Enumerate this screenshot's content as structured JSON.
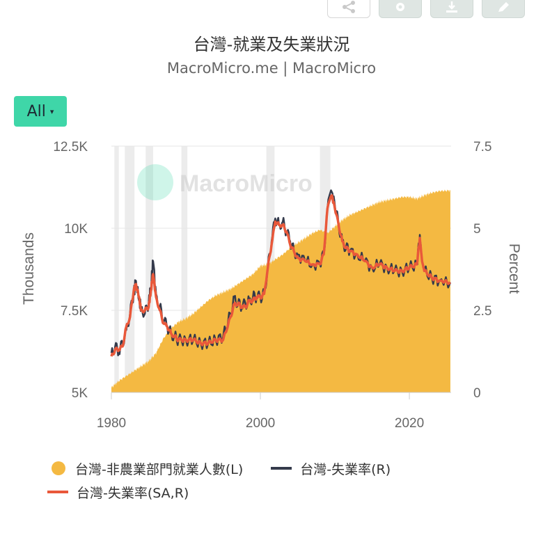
{
  "title": "台灣-就業及失業狀況",
  "subtitle": "MacroMicro.me | MacroMicro",
  "range_selector": {
    "label": "All",
    "caret": "▾"
  },
  "toolbar": {
    "icons": [
      "share-icon",
      "gear-icon",
      "download-icon",
      "edit-icon"
    ]
  },
  "watermark": "MacroMicro",
  "colors": {
    "employment": "#f4b942",
    "unemployment": "#343a4b",
    "unemployment_sa": "#e9583a",
    "recession": "#ececec",
    "accent": "#3fd6a8"
  },
  "chart_data": {
    "type": "area",
    "title": "台灣-就業及失業狀況",
    "left_axis": {
      "label": "Thousands",
      "range": [
        5000,
        12500
      ],
      "ticks": [
        5000,
        7500,
        10000,
        12500
      ],
      "tick_labels": [
        "5K",
        "7.5K",
        "10K",
        "12.5K"
      ]
    },
    "right_axis": {
      "label": "Percent",
      "range": [
        0,
        7.5
      ],
      "ticks": [
        0,
        2.5,
        5,
        7.5
      ],
      "tick_labels": [
        "0",
        "2.5",
        "5",
        "7.5"
      ]
    },
    "x_axis": {
      "range": [
        1980,
        2025.6
      ],
      "ticks": [
        1980,
        2000,
        2020
      ],
      "tick_labels": [
        "1980",
        "2000",
        "2020"
      ]
    },
    "recession_bands": [
      [
        1980.4,
        1981.0
      ],
      [
        1981.8,
        1983.1
      ],
      [
        1984.6,
        1985.6
      ],
      [
        1989.4,
        1990.2
      ],
      [
        2000.8,
        2001.9
      ],
      [
        2008.0,
        2009.4
      ]
    ],
    "series": [
      {
        "name": "台灣-非農業部門就業人數(L)",
        "axis": "left",
        "type": "area",
        "points": [
          [
            1980,
            5150
          ],
          [
            1981,
            5350
          ],
          [
            1982,
            5500
          ],
          [
            1983,
            5650
          ],
          [
            1984,
            5800
          ],
          [
            1985,
            5950
          ],
          [
            1986,
            6200
          ],
          [
            1987,
            6650
          ],
          [
            1988,
            6950
          ],
          [
            1989,
            7150
          ],
          [
            1990,
            7250
          ],
          [
            1991,
            7400
          ],
          [
            1992,
            7600
          ],
          [
            1993,
            7800
          ],
          [
            1994,
            7950
          ],
          [
            1995,
            8050
          ],
          [
            1996,
            8150
          ],
          [
            1997,
            8300
          ],
          [
            1998,
            8450
          ],
          [
            1999,
            8600
          ],
          [
            2000,
            8850
          ],
          [
            2001,
            8900
          ],
          [
            2002,
            9050
          ],
          [
            2003,
            9200
          ],
          [
            2004,
            9400
          ],
          [
            2005,
            9550
          ],
          [
            2006,
            9700
          ],
          [
            2007,
            9850
          ],
          [
            2008,
            9950
          ],
          [
            2009,
            9850
          ],
          [
            2010,
            10050
          ],
          [
            2011,
            10250
          ],
          [
            2012,
            10400
          ],
          [
            2013,
            10500
          ],
          [
            2014,
            10600
          ],
          [
            2015,
            10700
          ],
          [
            2016,
            10800
          ],
          [
            2017,
            10850
          ],
          [
            2018,
            10900
          ],
          [
            2019,
            10950
          ],
          [
            2020,
            10950
          ],
          [
            2021,
            10900
          ],
          [
            2022,
            11000
          ],
          [
            2023,
            11080
          ],
          [
            2024,
            11130
          ],
          [
            2025.5,
            11150
          ]
        ]
      },
      {
        "name": "台灣-失業率(R)",
        "axis": "right",
        "type": "line",
        "points": [
          [
            1980,
            1.2
          ],
          [
            1980.5,
            1.4
          ],
          [
            1981,
            1.2
          ],
          [
            1981.5,
            1.5
          ],
          [
            1982,
            1.9
          ],
          [
            1982.5,
            2.4
          ],
          [
            1983,
            3.0
          ],
          [
            1983.3,
            3.4
          ],
          [
            1983.7,
            2.8
          ],
          [
            1984,
            2.6
          ],
          [
            1984.5,
            2.4
          ],
          [
            1985,
            2.7
          ],
          [
            1985.3,
            3.2
          ],
          [
            1985.6,
            4.0
          ],
          [
            1986,
            3.0
          ],
          [
            1986.5,
            2.6
          ],
          [
            1987,
            2.2
          ],
          [
            1987.5,
            2.0
          ],
          [
            1988,
            1.8
          ],
          [
            1988.5,
            1.7
          ],
          [
            1989,
            1.6
          ],
          [
            1990,
            1.6
          ],
          [
            1991,
            1.6
          ],
          [
            1992,
            1.5
          ],
          [
            1993,
            1.5
          ],
          [
            1994,
            1.6
          ],
          [
            1995,
            1.7
          ],
          [
            1996,
            2.4
          ],
          [
            1996.5,
            2.9
          ],
          [
            1997,
            2.7
          ],
          [
            1997.5,
            2.6
          ],
          [
            1998,
            2.7
          ],
          [
            1998.5,
            2.8
          ],
          [
            1999,
            2.9
          ],
          [
            1999.5,
            2.9
          ],
          [
            2000,
            2.9
          ],
          [
            2000.5,
            3.0
          ],
          [
            2001,
            3.8
          ],
          [
            2001.5,
            4.6
          ],
          [
            2002,
            5.3
          ],
          [
            2002.5,
            5.1
          ],
          [
            2003,
            5.2
          ],
          [
            2003.5,
            4.9
          ],
          [
            2004,
            4.6
          ],
          [
            2004.5,
            4.3
          ],
          [
            2005,
            4.2
          ],
          [
            2006,
            4.0
          ],
          [
            2007,
            3.9
          ],
          [
            2008,
            3.9
          ],
          [
            2008.5,
            4.2
          ],
          [
            2009,
            5.6
          ],
          [
            2009.6,
            6.1
          ],
          [
            2010,
            5.7
          ],
          [
            2010.5,
            5.1
          ],
          [
            2011,
            4.6
          ],
          [
            2011.5,
            4.4
          ],
          [
            2012,
            4.3
          ],
          [
            2013,
            4.2
          ],
          [
            2014,
            4.0
          ],
          [
            2015,
            3.8
          ],
          [
            2016,
            3.9
          ],
          [
            2017,
            3.8
          ],
          [
            2018,
            3.7
          ],
          [
            2019,
            3.7
          ],
          [
            2020,
            3.8
          ],
          [
            2021,
            3.9
          ],
          [
            2021.4,
            4.8
          ],
          [
            2021.7,
            4.0
          ],
          [
            2022,
            3.7
          ],
          [
            2023,
            3.5
          ],
          [
            2024,
            3.4
          ],
          [
            2025.5,
            3.35
          ]
        ]
      },
      {
        "name": "台灣-失業率(SA,R)",
        "axis": "right",
        "type": "line",
        "points": [
          [
            1980,
            1.1
          ],
          [
            1980.5,
            1.3
          ],
          [
            1981,
            1.3
          ],
          [
            1981.5,
            1.4
          ],
          [
            1982,
            2.0
          ],
          [
            1982.5,
            2.3
          ],
          [
            1983,
            3.1
          ],
          [
            1983.3,
            3.3
          ],
          [
            1983.7,
            2.9
          ],
          [
            1984,
            2.5
          ],
          [
            1984.5,
            2.5
          ],
          [
            1985,
            2.6
          ],
          [
            1985.3,
            3.1
          ],
          [
            1985.6,
            3.6
          ],
          [
            1986,
            2.9
          ],
          [
            1986.5,
            2.5
          ],
          [
            1987,
            2.1
          ],
          [
            1987.5,
            2.0
          ],
          [
            1988,
            1.8
          ],
          [
            1988.5,
            1.7
          ],
          [
            1989,
            1.6
          ],
          [
            1990,
            1.6
          ],
          [
            1991,
            1.6
          ],
          [
            1992,
            1.5
          ],
          [
            1993,
            1.5
          ],
          [
            1994,
            1.6
          ],
          [
            1995,
            1.6
          ],
          [
            1996,
            2.3
          ],
          [
            1996.5,
            2.7
          ],
          [
            1997,
            2.7
          ],
          [
            1997.5,
            2.6
          ],
          [
            1998,
            2.6
          ],
          [
            1998.5,
            2.8
          ],
          [
            1999,
            2.8
          ],
          [
            1999.5,
            2.9
          ],
          [
            2000,
            2.9
          ],
          [
            2000.5,
            3.0
          ],
          [
            2001,
            3.8
          ],
          [
            2001.5,
            4.5
          ],
          [
            2002,
            5.2
          ],
          [
            2002.5,
            5.1
          ],
          [
            2003,
            5.1
          ],
          [
            2003.5,
            4.9
          ],
          [
            2004,
            4.5
          ],
          [
            2004.5,
            4.3
          ],
          [
            2005,
            4.1
          ],
          [
            2006,
            4.0
          ],
          [
            2007,
            3.9
          ],
          [
            2008,
            3.9
          ],
          [
            2008.5,
            4.2
          ],
          [
            2009,
            5.6
          ],
          [
            2009.6,
            6.0
          ],
          [
            2010,
            5.6
          ],
          [
            2010.5,
            5.1
          ],
          [
            2011,
            4.6
          ],
          [
            2011.5,
            4.4
          ],
          [
            2012,
            4.3
          ],
          [
            2013,
            4.2
          ],
          [
            2014,
            4.0
          ],
          [
            2015,
            3.8
          ],
          [
            2016,
            3.9
          ],
          [
            2017,
            3.8
          ],
          [
            2018,
            3.7
          ],
          [
            2019,
            3.7
          ],
          [
            2020,
            3.8
          ],
          [
            2021,
            3.9
          ],
          [
            2021.4,
            4.7
          ],
          [
            2021.7,
            4.0
          ],
          [
            2022,
            3.7
          ],
          [
            2023,
            3.5
          ],
          [
            2024,
            3.4
          ],
          [
            2025.5,
            3.35
          ]
        ]
      }
    ],
    "legend": {
      "placement": "bottom",
      "items": [
        "台灣-非農業部門就業人數(L)",
        "台灣-失業率(R)",
        "台灣-失業率(SA,R)"
      ]
    },
    "grid": true
  }
}
